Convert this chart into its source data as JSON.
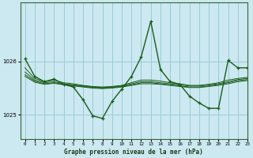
{
  "title": "Graphe pression niveau de la mer (hPa)",
  "bg_color": "#cce8f0",
  "grid_color": "#99ccd9",
  "line_color": "#1a5c1a",
  "xlim": [
    -0.5,
    23
  ],
  "ylim": [
    1024.55,
    1027.1
  ],
  "yticks": [
    1025,
    1026
  ],
  "xticks": [
    0,
    1,
    2,
    3,
    4,
    5,
    6,
    7,
    8,
    9,
    10,
    11,
    12,
    13,
    14,
    15,
    16,
    17,
    18,
    19,
    20,
    21,
    22,
    23
  ],
  "series1": {
    "x": [
      0,
      1,
      2,
      3,
      4,
      5,
      6,
      7,
      8,
      9,
      10,
      11,
      12,
      13,
      14,
      15,
      16,
      17,
      18,
      19,
      20,
      21,
      22,
      23
    ],
    "y": [
      1026.05,
      1025.72,
      1025.62,
      1025.67,
      1025.57,
      1025.52,
      1025.28,
      1024.98,
      1024.93,
      1025.25,
      1025.48,
      1025.72,
      1026.08,
      1026.75,
      1025.85,
      1025.62,
      1025.57,
      1025.35,
      1025.22,
      1025.12,
      1025.12,
      1026.02,
      1025.88,
      1025.88
    ]
  },
  "series2": {
    "x": [
      0,
      1,
      2,
      3,
      4,
      5,
      6,
      7,
      8,
      9,
      10,
      11,
      12,
      13,
      14,
      15,
      16,
      17,
      18,
      19,
      20,
      21,
      22,
      23
    ],
    "y": [
      1025.88,
      1025.68,
      1025.62,
      1025.65,
      1025.6,
      1025.58,
      1025.55,
      1025.53,
      1025.52,
      1025.53,
      1025.55,
      1025.6,
      1025.65,
      1025.65,
      1025.63,
      1025.6,
      1025.58,
      1025.55,
      1025.55,
      1025.57,
      1025.6,
      1025.65,
      1025.68,
      1025.7
    ]
  },
  "series3": {
    "x": [
      0,
      1,
      2,
      3,
      4,
      5,
      6,
      7,
      8,
      9,
      10,
      11,
      12,
      13,
      14,
      15,
      16,
      17,
      18,
      19,
      20,
      21,
      22,
      23
    ],
    "y": [
      1025.8,
      1025.65,
      1025.6,
      1025.62,
      1025.58,
      1025.56,
      1025.54,
      1025.52,
      1025.51,
      1025.52,
      1025.54,
      1025.58,
      1025.62,
      1025.62,
      1025.6,
      1025.58,
      1025.56,
      1025.54,
      1025.54,
      1025.56,
      1025.58,
      1025.62,
      1025.66,
      1025.68
    ]
  },
  "series4": {
    "x": [
      0,
      1,
      2,
      3,
      4,
      5,
      6,
      7,
      8,
      9,
      10,
      11,
      12,
      13,
      14,
      15,
      16,
      17,
      18,
      19,
      20,
      21,
      22,
      23
    ],
    "y": [
      1025.75,
      1025.63,
      1025.58,
      1025.6,
      1025.57,
      1025.55,
      1025.53,
      1025.51,
      1025.5,
      1025.51,
      1025.53,
      1025.56,
      1025.6,
      1025.6,
      1025.58,
      1025.56,
      1025.54,
      1025.52,
      1025.52,
      1025.54,
      1025.57,
      1025.6,
      1025.64,
      1025.66
    ]
  },
  "series5": {
    "x": [
      0,
      1,
      2,
      3,
      4,
      5,
      6,
      7,
      8,
      9,
      10,
      11,
      12,
      13,
      14,
      15,
      16,
      17,
      18,
      19,
      20,
      21,
      22,
      23
    ],
    "y": [
      1025.72,
      1025.61,
      1025.57,
      1025.59,
      1025.56,
      1025.54,
      1025.52,
      1025.5,
      1025.49,
      1025.5,
      1025.52,
      1025.55,
      1025.58,
      1025.58,
      1025.57,
      1025.55,
      1025.53,
      1025.51,
      1025.51,
      1025.53,
      1025.55,
      1025.58,
      1025.62,
      1025.64
    ]
  }
}
